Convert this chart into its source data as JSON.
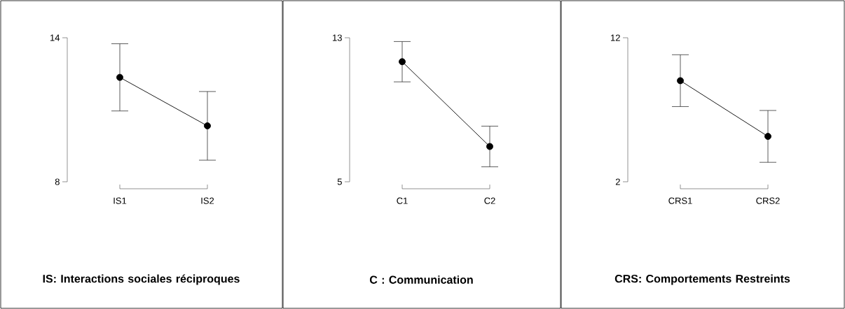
{
  "chart_data": [
    {
      "type": "line",
      "title": "IS: Interactions sociales réciproques",
      "categories": [
        "IS1",
        "IS2"
      ],
      "values": [
        12.35,
        10.33
      ],
      "errors": [
        1.4,
        1.43
      ],
      "color": "#000000",
      "marker": "circle",
      "line_style": "solid",
      "ylim": [
        8,
        14
      ],
      "yticks": [
        8,
        14
      ],
      "grid": false
    },
    {
      "type": "line",
      "title": "C : Communication",
      "categories": [
        "C1",
        "C2"
      ],
      "values": [
        11.67,
        6.96
      ],
      "errors": [
        1.12,
        1.13
      ],
      "color": "#000000",
      "marker": "circle",
      "line_style": "solid",
      "ylim": [
        5,
        13
      ],
      "yticks": [
        5,
        13
      ],
      "grid": false
    },
    {
      "type": "line",
      "title": "CRS: Comportements Restreints",
      "categories": [
        "CRS1",
        "CRS2"
      ],
      "values": [
        9.02,
        5.15
      ],
      "errors": [
        1.8,
        1.8
      ],
      "color": "#000000",
      "marker": "circle",
      "line_style": "solid",
      "ylim": [
        2,
        12
      ],
      "yticks": [
        2,
        12
      ],
      "grid": false
    }
  ]
}
